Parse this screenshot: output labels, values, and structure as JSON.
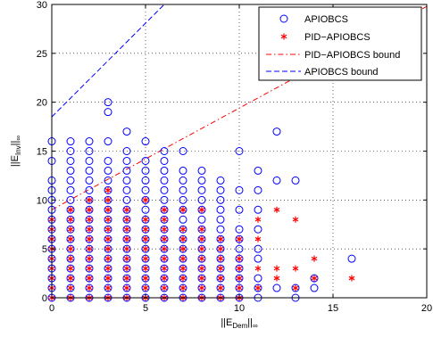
{
  "chart_data": {
    "type": "scatter",
    "xlim": [
      0,
      20
    ],
    "ylim": [
      0,
      30
    ],
    "x_ticks": [
      0,
      5,
      10,
      15,
      20
    ],
    "y_ticks": [
      0,
      5,
      10,
      15,
      20,
      25,
      30
    ],
    "grid": true,
    "grid_style": "dotted",
    "legend_position": "top-right",
    "xlabel": {
      "main": "||E",
      "sub": "Dem",
      "tail": "||",
      "sub2": "∞"
    },
    "ylabel": {
      "main": "||E",
      "sub": "Inv",
      "tail": "||",
      "sub2": "∞"
    },
    "series": [
      {
        "name": "APIOBCS",
        "marker": "open-circle",
        "color": "#0000ff",
        "points": [
          [
            0,
            0
          ],
          [
            0,
            1
          ],
          [
            0,
            2
          ],
          [
            0,
            3
          ],
          [
            0,
            4
          ],
          [
            0,
            5
          ],
          [
            0,
            6
          ],
          [
            0,
            7
          ],
          [
            0,
            8
          ],
          [
            0,
            9
          ],
          [
            0,
            10
          ],
          [
            0,
            11
          ],
          [
            0,
            12
          ],
          [
            0,
            14
          ],
          [
            0,
            16
          ],
          [
            1,
            0
          ],
          [
            1,
            1
          ],
          [
            1,
            2
          ],
          [
            1,
            3
          ],
          [
            1,
            4
          ],
          [
            1,
            5
          ],
          [
            1,
            6
          ],
          [
            1,
            7
          ],
          [
            1,
            8
          ],
          [
            1,
            9
          ],
          [
            1,
            10
          ],
          [
            1,
            11
          ],
          [
            1,
            12
          ],
          [
            1,
            13
          ],
          [
            1,
            14
          ],
          [
            1,
            15
          ],
          [
            1,
            16
          ],
          [
            2,
            0
          ],
          [
            2,
            1
          ],
          [
            2,
            2
          ],
          [
            2,
            3
          ],
          [
            2,
            4
          ],
          [
            2,
            5
          ],
          [
            2,
            6
          ],
          [
            2,
            7
          ],
          [
            2,
            8
          ],
          [
            2,
            9
          ],
          [
            2,
            10
          ],
          [
            2,
            11
          ],
          [
            2,
            12
          ],
          [
            2,
            13
          ],
          [
            2,
            14
          ],
          [
            2,
            15
          ],
          [
            2,
            16
          ],
          [
            3,
            0
          ],
          [
            3,
            1
          ],
          [
            3,
            2
          ],
          [
            3,
            3
          ],
          [
            3,
            4
          ],
          [
            3,
            5
          ],
          [
            3,
            6
          ],
          [
            3,
            7
          ],
          [
            3,
            8
          ],
          [
            3,
            9
          ],
          [
            3,
            10
          ],
          [
            3,
            11
          ],
          [
            3,
            12
          ],
          [
            3,
            13
          ],
          [
            3,
            14
          ],
          [
            3,
            16
          ],
          [
            3,
            19
          ],
          [
            3,
            20
          ],
          [
            4,
            0
          ],
          [
            4,
            1
          ],
          [
            4,
            2
          ],
          [
            4,
            3
          ],
          [
            4,
            4
          ],
          [
            4,
            5
          ],
          [
            4,
            6
          ],
          [
            4,
            7
          ],
          [
            4,
            8
          ],
          [
            4,
            9
          ],
          [
            4,
            10
          ],
          [
            4,
            11
          ],
          [
            4,
            12
          ],
          [
            4,
            13
          ],
          [
            4,
            14
          ],
          [
            4,
            15
          ],
          [
            4,
            17
          ],
          [
            5,
            0
          ],
          [
            5,
            1
          ],
          [
            5,
            2
          ],
          [
            5,
            3
          ],
          [
            5,
            4
          ],
          [
            5,
            5
          ],
          [
            5,
            6
          ],
          [
            5,
            7
          ],
          [
            5,
            8
          ],
          [
            5,
            9
          ],
          [
            5,
            10
          ],
          [
            5,
            11
          ],
          [
            5,
            12
          ],
          [
            5,
            13
          ],
          [
            5,
            14
          ],
          [
            5,
            16
          ],
          [
            6,
            0
          ],
          [
            6,
            1
          ],
          [
            6,
            2
          ],
          [
            6,
            3
          ],
          [
            6,
            4
          ],
          [
            6,
            5
          ],
          [
            6,
            6
          ],
          [
            6,
            7
          ],
          [
            6,
            8
          ],
          [
            6,
            9
          ],
          [
            6,
            10
          ],
          [
            6,
            11
          ],
          [
            6,
            12
          ],
          [
            6,
            13
          ],
          [
            6,
            14
          ],
          [
            6,
            15
          ],
          [
            7,
            0
          ],
          [
            7,
            1
          ],
          [
            7,
            2
          ],
          [
            7,
            3
          ],
          [
            7,
            4
          ],
          [
            7,
            5
          ],
          [
            7,
            6
          ],
          [
            7,
            7
          ],
          [
            7,
            8
          ],
          [
            7,
            9
          ],
          [
            7,
            10
          ],
          [
            7,
            11
          ],
          [
            7,
            12
          ],
          [
            7,
            13
          ],
          [
            7,
            15
          ],
          [
            8,
            0
          ],
          [
            8,
            1
          ],
          [
            8,
            2
          ],
          [
            8,
            3
          ],
          [
            8,
            4
          ],
          [
            8,
            5
          ],
          [
            8,
            6
          ],
          [
            8,
            7
          ],
          [
            8,
            8
          ],
          [
            8,
            9
          ],
          [
            8,
            10
          ],
          [
            8,
            11
          ],
          [
            8,
            12
          ],
          [
            8,
            13
          ],
          [
            9,
            0
          ],
          [
            9,
            1
          ],
          [
            9,
            2
          ],
          [
            9,
            3
          ],
          [
            9,
            4
          ],
          [
            9,
            5
          ],
          [
            9,
            6
          ],
          [
            9,
            7
          ],
          [
            9,
            8
          ],
          [
            9,
            9
          ],
          [
            9,
            10
          ],
          [
            9,
            11
          ],
          [
            9,
            12
          ],
          [
            10,
            0
          ],
          [
            10,
            1
          ],
          [
            10,
            2
          ],
          [
            10,
            3
          ],
          [
            10,
            4
          ],
          [
            10,
            5
          ],
          [
            10,
            6
          ],
          [
            10,
            7
          ],
          [
            10,
            9
          ],
          [
            10,
            11
          ],
          [
            10,
            15
          ],
          [
            11,
            0
          ],
          [
            11,
            1
          ],
          [
            11,
            2
          ],
          [
            11,
            4
          ],
          [
            11,
            5
          ],
          [
            11,
            7
          ],
          [
            11,
            9
          ],
          [
            11,
            11
          ],
          [
            11,
            13
          ],
          [
            12,
            1
          ],
          [
            12,
            12
          ],
          [
            12,
            17
          ],
          [
            13,
            0
          ],
          [
            13,
            1
          ],
          [
            13,
            12
          ],
          [
            14,
            1
          ],
          [
            14,
            2
          ],
          [
            16,
            4
          ]
        ]
      },
      {
        "name": "PID−APIOBCS",
        "marker": "asterisk",
        "color": "#ff0000",
        "points": [
          [
            0,
            0
          ],
          [
            0,
            1
          ],
          [
            0,
            2
          ],
          [
            0,
            3
          ],
          [
            0,
            4
          ],
          [
            0,
            5
          ],
          [
            0,
            6
          ],
          [
            0,
            7
          ],
          [
            0,
            8
          ],
          [
            1,
            0
          ],
          [
            1,
            1
          ],
          [
            1,
            2
          ],
          [
            1,
            3
          ],
          [
            1,
            4
          ],
          [
            1,
            5
          ],
          [
            1,
            6
          ],
          [
            1,
            7
          ],
          [
            1,
            8
          ],
          [
            1,
            9
          ],
          [
            2,
            0
          ],
          [
            2,
            1
          ],
          [
            2,
            2
          ],
          [
            2,
            3
          ],
          [
            2,
            4
          ],
          [
            2,
            5
          ],
          [
            2,
            6
          ],
          [
            2,
            7
          ],
          [
            2,
            8
          ],
          [
            2,
            9
          ],
          [
            2,
            10
          ],
          [
            3,
            0
          ],
          [
            3,
            1
          ],
          [
            3,
            2
          ],
          [
            3,
            3
          ],
          [
            3,
            4
          ],
          [
            3,
            5
          ],
          [
            3,
            6
          ],
          [
            3,
            7
          ],
          [
            3,
            8
          ],
          [
            3,
            9
          ],
          [
            3,
            10
          ],
          [
            3,
            11
          ],
          [
            4,
            0
          ],
          [
            4,
            1
          ],
          [
            4,
            2
          ],
          [
            4,
            3
          ],
          [
            4,
            4
          ],
          [
            4,
            5
          ],
          [
            4,
            6
          ],
          [
            4,
            7
          ],
          [
            4,
            8
          ],
          [
            4,
            9
          ],
          [
            5,
            0
          ],
          [
            5,
            1
          ],
          [
            5,
            2
          ],
          [
            5,
            3
          ],
          [
            5,
            4
          ],
          [
            5,
            5
          ],
          [
            5,
            6
          ],
          [
            5,
            7
          ],
          [
            5,
            8
          ],
          [
            5,
            10
          ],
          [
            6,
            0
          ],
          [
            6,
            1
          ],
          [
            6,
            2
          ],
          [
            6,
            3
          ],
          [
            6,
            4
          ],
          [
            6,
            5
          ],
          [
            6,
            6
          ],
          [
            6,
            7
          ],
          [
            6,
            8
          ],
          [
            6,
            9
          ],
          [
            7,
            0
          ],
          [
            7,
            1
          ],
          [
            7,
            2
          ],
          [
            7,
            3
          ],
          [
            7,
            4
          ],
          [
            7,
            5
          ],
          [
            7,
            6
          ],
          [
            7,
            7
          ],
          [
            7,
            9
          ],
          [
            8,
            0
          ],
          [
            8,
            1
          ],
          [
            8,
            2
          ],
          [
            8,
            3
          ],
          [
            8,
            4
          ],
          [
            8,
            5
          ],
          [
            8,
            6
          ],
          [
            8,
            7
          ],
          [
            8,
            9
          ],
          [
            9,
            0
          ],
          [
            9,
            1
          ],
          [
            9,
            2
          ],
          [
            9,
            3
          ],
          [
            9,
            4
          ],
          [
            9,
            5
          ],
          [
            9,
            6
          ],
          [
            10,
            0
          ],
          [
            10,
            1
          ],
          [
            10,
            2
          ],
          [
            10,
            3
          ],
          [
            10,
            4
          ],
          [
            10,
            6
          ],
          [
            11,
            1
          ],
          [
            11,
            3
          ],
          [
            11,
            6
          ],
          [
            11,
            8
          ],
          [
            12,
            2
          ],
          [
            12,
            3
          ],
          [
            12,
            9
          ],
          [
            13,
            1
          ],
          [
            13,
            3
          ],
          [
            13,
            8
          ],
          [
            14,
            2
          ],
          [
            14,
            4
          ],
          [
            16,
            2
          ]
        ]
      }
    ],
    "lines": [
      {
        "name": "PID−APIOBCS bound",
        "style": "dash-dot",
        "color": "#ff0000",
        "points": [
          [
            0,
            9.0
          ],
          [
            20,
            29.8
          ]
        ]
      },
      {
        "name": "APIOBCS bound",
        "style": "dashed",
        "color": "#0000ff",
        "points": [
          [
            0,
            18.5
          ],
          [
            6,
            30
          ]
        ]
      }
    ]
  }
}
